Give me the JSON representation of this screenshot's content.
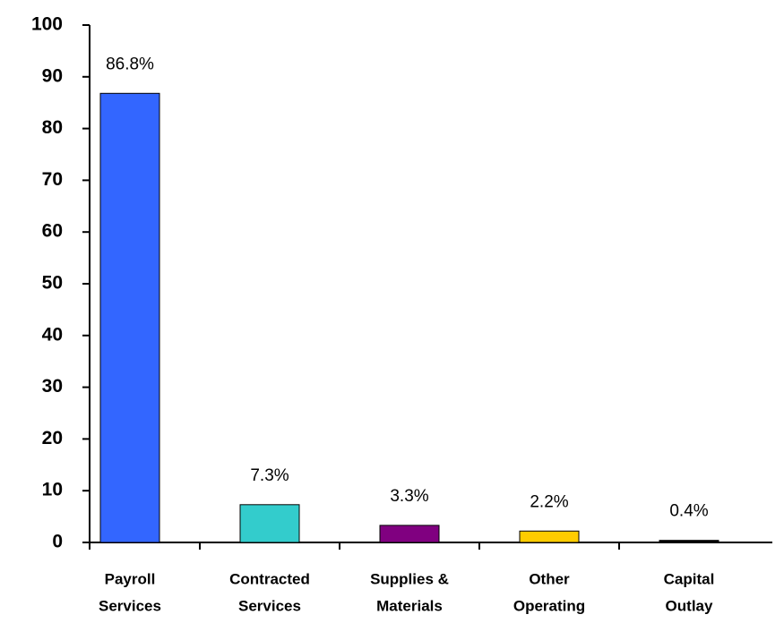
{
  "chart_data": {
    "type": "bar",
    "categories": [
      [
        "Payroll",
        "Services"
      ],
      [
        "Contracted",
        "Services"
      ],
      [
        "Supplies &",
        "Materials"
      ],
      [
        "Other",
        "Operating"
      ],
      [
        "Capital",
        "Outlay"
      ]
    ],
    "values": [
      86.8,
      7.3,
      3.3,
      2.2,
      0.4
    ],
    "value_labels": [
      "86.8%",
      "7.3%",
      "3.3%",
      "2.2%",
      "0.4%"
    ],
    "colors": [
      "#3366ff",
      "#33cccc",
      "#800080",
      "#ffcc00",
      "#000000"
    ],
    "ylim": [
      0,
      100
    ],
    "yticks": [
      0,
      10,
      20,
      30,
      40,
      50,
      60,
      70,
      80,
      90,
      100
    ]
  }
}
